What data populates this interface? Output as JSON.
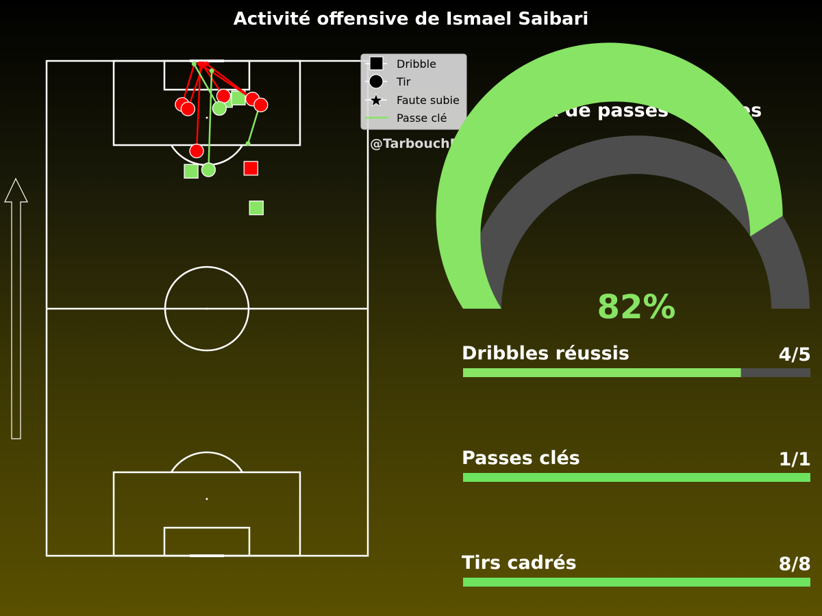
{
  "title": "Activité offensive de Ismael Saibari",
  "watermark": "@TarbouchData",
  "colors": {
    "success": "#88e464",
    "success_bar": "#6de35f",
    "fail": "#ff0000",
    "track": "#4d4d4d",
    "lines": "#ffffff"
  },
  "legend": {
    "items": [
      {
        "marker": "square",
        "label": "Dribble"
      },
      {
        "marker": "circle",
        "label": "Tir"
      },
      {
        "marker": "star",
        "label": "Faute subie"
      },
      {
        "marker": "line",
        "label": "Passe clé"
      }
    ]
  },
  "gauge": {
    "title": "Taux de passes réussies",
    "percent": 82,
    "value_label": "82%"
  },
  "stats": [
    {
      "label": "Dribbles réussis",
      "value_label": "4/5",
      "success": 4,
      "total": 5
    },
    {
      "label": "Passes clés",
      "value_label": "1/1",
      "success": 1,
      "total": 1
    },
    {
      "label": "Tirs cadrés",
      "value_label": "8/8",
      "success": 8,
      "total": 8
    }
  ],
  "chart_data": {
    "type": "scatter",
    "pitch": {
      "x_range": [
        0,
        100
      ],
      "y_range": [
        0,
        100
      ],
      "attack_direction": "up"
    },
    "dribbles": [
      {
        "x": 55.7,
        "y": 92.0,
        "success": true
      },
      {
        "x": 59.7,
        "y": 92.5,
        "success": true
      },
      {
        "x": 45.0,
        "y": 77.7,
        "success": true
      },
      {
        "x": 65.3,
        "y": 70.3,
        "success": true
      },
      {
        "x": 63.6,
        "y": 78.3,
        "success": false
      }
    ],
    "shots": [
      {
        "x": 42.2,
        "y": 91.2,
        "end_x": 46.0,
        "end_y": 99.4,
        "success": false
      },
      {
        "x": 44.0,
        "y": 90.3,
        "end_x": 48.8,
        "end_y": 99.4,
        "success": false
      },
      {
        "x": 55.1,
        "y": 92.9,
        "end_x": 48.4,
        "end_y": 99.4,
        "success": false
      },
      {
        "x": 64.1,
        "y": 92.3,
        "end_x": 47.7,
        "end_y": 99.4,
        "success": false
      },
      {
        "x": 66.7,
        "y": 91.1,
        "end_x": 49.8,
        "end_y": 99.4,
        "success": false
      },
      {
        "x": 46.7,
        "y": 81.8,
        "end_x": 47.9,
        "end_y": 99.4,
        "success": false
      },
      {
        "x": 53.8,
        "y": 90.4,
        "end_x": 45.9,
        "end_y": 99.4,
        "success": true
      },
      {
        "x": 50.4,
        "y": 78.0,
        "end_x": 51.4,
        "end_y": 98.0,
        "success": true
      }
    ],
    "fouls_won": [],
    "key_passes": [
      {
        "x": 67.0,
        "y": 92.5,
        "end_x": 62.7,
        "end_y": 83.3
      }
    ]
  }
}
